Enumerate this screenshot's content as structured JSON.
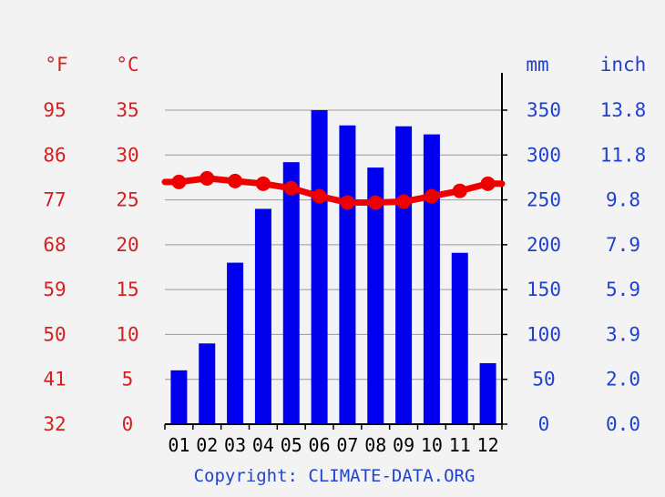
{
  "chart_data": {
    "type": "bar",
    "categories": [
      "01",
      "02",
      "03",
      "04",
      "05",
      "06",
      "07",
      "08",
      "09",
      "10",
      "11",
      "12"
    ],
    "series": [
      {
        "type": "bar",
        "axis": "right",
        "unit": "mm",
        "color": "#0000ee",
        "values": [
          60,
          90,
          180,
          240,
          292,
          350,
          333,
          286,
          332,
          323,
          191,
          68
        ]
      },
      {
        "type": "line",
        "axis": "left",
        "unit": "°C",
        "color": "#ee0000",
        "values": [
          27.0,
          27.4,
          27.1,
          26.8,
          26.3,
          25.4,
          24.7,
          24.7,
          24.8,
          25.4,
          26.0,
          26.8
        ]
      }
    ],
    "y_left": {
      "unit_f": "°F",
      "unit_c": "°C",
      "ylim": [
        0,
        35
      ],
      "ticks_c": [
        "0",
        "5",
        "10",
        "15",
        "20",
        "25",
        "30",
        "35"
      ],
      "ticks_f": [
        "32",
        "41",
        "50",
        "59",
        "68",
        "77",
        "86",
        "95"
      ]
    },
    "y_right": {
      "unit_mm": "mm",
      "unit_inch": "inch",
      "ylim": [
        0,
        350
      ],
      "ticks_mm": [
        "0",
        "50",
        "100",
        "150",
        "200",
        "250",
        "300",
        "350"
      ],
      "ticks_inch": [
        "0.0",
        "2.0",
        "3.9",
        "5.9",
        "7.9",
        "9.8",
        "11.8",
        "13.8"
      ]
    },
    "grid": true,
    "copyright": "Copyright: CLIMATE-DATA.ORG"
  },
  "colors": {
    "bar": "#0000ee",
    "line": "#ee0000",
    "temp_label": "#d42020",
    "precip_label": "#1f3fd0"
  }
}
